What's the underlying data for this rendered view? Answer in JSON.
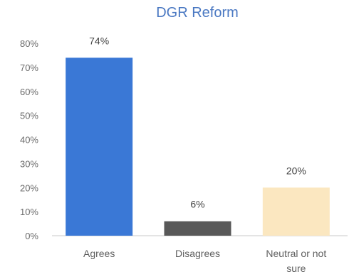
{
  "chart_data": {
    "type": "bar",
    "title": "DGR Reform",
    "categories": [
      "Agrees",
      "Disagrees",
      "Neutral or not sure"
    ],
    "category_label_lines": [
      [
        "Agrees"
      ],
      [
        "Disagrees"
      ],
      [
        "Neutral or not",
        "sure"
      ]
    ],
    "values": [
      74,
      6,
      20
    ],
    "data_labels": [
      "74%",
      "6%",
      "20%"
    ],
    "bar_colors": [
      "#3a78d6",
      "#585858",
      "#fbe7c0"
    ],
    "ylim": [
      0,
      80
    ],
    "yticks": [
      0,
      10,
      20,
      30,
      40,
      50,
      60,
      70,
      80
    ],
    "ytick_labels": [
      "0%",
      "10%",
      "20%",
      "30%",
      "40%",
      "50%",
      "60%",
      "70%",
      "80%"
    ],
    "xlabel": "",
    "ylabel": "",
    "grid": false,
    "legend": "none"
  }
}
